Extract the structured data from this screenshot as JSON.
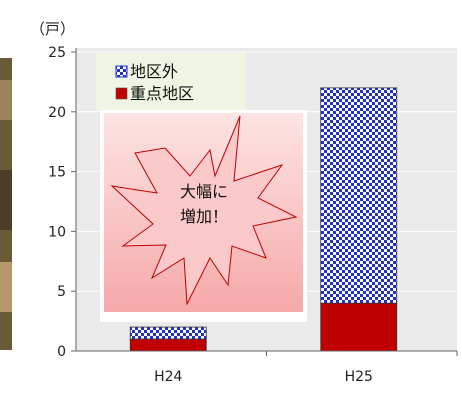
{
  "chart_data": {
    "type": "bar",
    "stacked": true,
    "categories": [
      "H24",
      "H25"
    ],
    "series": [
      {
        "name": "重点地区",
        "values": [
          1,
          4
        ],
        "color": "#c00000",
        "pattern": "solid"
      },
      {
        "name": "地区外",
        "values": [
          1,
          18
        ],
        "color": "#1f2fd0",
        "pattern": "checkerboard"
      }
    ],
    "yticks": [
      0,
      5,
      10,
      15,
      20,
      25
    ],
    "ylim": [
      0,
      25
    ],
    "yunit": "（戸）",
    "legend": {
      "position": "top-left",
      "order": [
        "地区外",
        "重点地区"
      ]
    },
    "annotation": {
      "line1": "大幅に",
      "line2": "増加！"
    },
    "colors": {
      "plot_background": "#eaeaea",
      "legend_background": "#eef5e2",
      "burst_fill": "#fbc9c9",
      "burst_stroke": "#c00000"
    }
  }
}
